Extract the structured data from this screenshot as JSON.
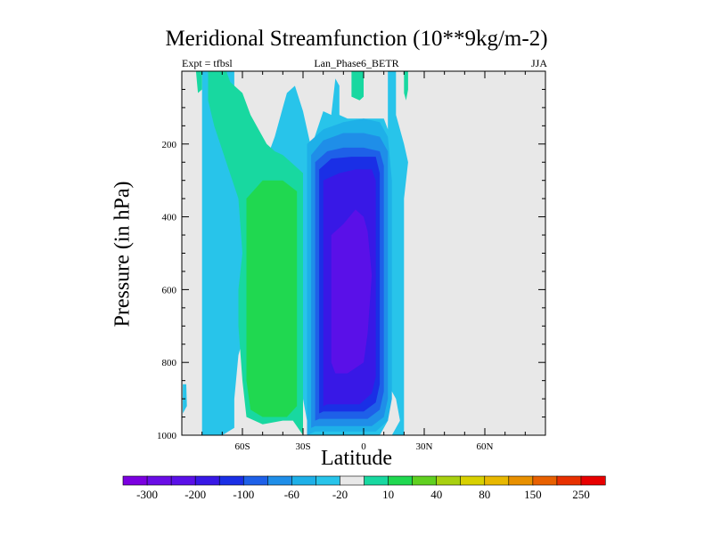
{
  "chart_data": {
    "type": "contour",
    "title": "Meridional Streamfunction (10**9kg/m-2)",
    "subtitle_left": "Expt = tfbsl",
    "subtitle_center": "Lan_Phase6_BETR",
    "subtitle_right": "JJA",
    "xlabel": "Latitude",
    "ylabel": "Pressure (in hPa)",
    "xlim": [
      -90,
      90
    ],
    "ylim": [
      0,
      1000
    ],
    "x_ticks": [
      {
        "value": -60,
        "label": "60S"
      },
      {
        "value": -30,
        "label": "30S"
      },
      {
        "value": 0,
        "label": "0"
      },
      {
        "value": 30,
        "label": "30N"
      },
      {
        "value": 60,
        "label": "60N"
      }
    ],
    "y_ticks": [
      {
        "value": 200,
        "label": "200"
      },
      {
        "value": 400,
        "label": "400"
      },
      {
        "value": 600,
        "label": "600"
      },
      {
        "value": 800,
        "label": "800"
      },
      {
        "value": 1000,
        "label": "1000"
      }
    ],
    "colorbar": {
      "colors": [
        "#7b00e0",
        "#6a0de6",
        "#5a10e8",
        "#3818e6",
        "#1a2fe6",
        "#1e60e8",
        "#1f8ee8",
        "#1eb0e8",
        "#28c4ea",
        "#e8e8e8",
        "#18d8a0",
        "#20d850",
        "#60d020",
        "#a8d010",
        "#d8d000",
        "#e8b800",
        "#e89000",
        "#e86000",
        "#e83000",
        "#e80000"
      ],
      "labels": [
        "-300",
        "-200",
        "-100",
        "-60",
        "-20",
        "10",
        "40",
        "80",
        "150",
        "250"
      ]
    },
    "regions": [
      {
        "name": "left-edge-cyan-sliver",
        "level": 10,
        "color": "#28c4ea",
        "pts": [
          [
            -89.5,
            860
          ],
          [
            -87.8,
            860
          ],
          [
            -87.5,
            920
          ],
          [
            -89.5,
            940
          ]
        ]
      },
      {
        "name": "south-cell-outer",
        "level": 10,
        "color": "#28c4ea",
        "pts": [
          [
            -80,
            1000
          ],
          [
            -80,
            0
          ],
          [
            -64,
            0
          ],
          [
            -64,
            40
          ],
          [
            -60,
            100
          ],
          [
            -54,
            180
          ],
          [
            -48,
            240
          ],
          [
            -44,
            180
          ],
          [
            -40,
            100
          ],
          [
            -38,
            60
          ],
          [
            -34,
            40
          ],
          [
            -30,
            110
          ],
          [
            -26,
            210
          ],
          [
            -20,
            110
          ],
          [
            -16,
            120
          ],
          [
            -14,
            20
          ],
          [
            -12,
            40
          ],
          [
            -12,
            120
          ],
          [
            -8,
            130
          ],
          [
            10,
            130
          ],
          [
            12,
            160
          ],
          [
            12,
            0
          ],
          [
            16,
            0
          ],
          [
            16,
            120
          ],
          [
            20,
            200
          ],
          [
            22,
            250
          ],
          [
            20,
            350
          ],
          [
            20,
            600
          ],
          [
            20,
            1000
          ],
          [
            14,
            1000
          ],
          [
            18,
            960
          ],
          [
            16,
            900
          ],
          [
            12,
            860
          ],
          [
            12,
            960
          ],
          [
            8,
            1000
          ],
          [
            -28,
            1000
          ],
          [
            -28,
            960
          ],
          [
            -30,
            900
          ],
          [
            -34,
            800
          ],
          [
            -36,
            700
          ],
          [
            -58,
            700
          ],
          [
            -62,
            780
          ],
          [
            -64,
            900
          ],
          [
            -64,
            980
          ],
          [
            -70,
            1000
          ]
        ]
      },
      {
        "name": "south-cell-green-10",
        "level": 40,
        "color": "#18d8a0",
        "pts": [
          [
            -77,
            0
          ],
          [
            -68,
            0
          ],
          [
            -66,
            30
          ],
          [
            -60,
            60
          ],
          [
            -56,
            120
          ],
          [
            -52,
            160
          ],
          [
            -48,
            200
          ],
          [
            -44,
            220
          ],
          [
            -40,
            230
          ],
          [
            -36,
            250
          ],
          [
            -30,
            280
          ],
          [
            -30,
            1000
          ],
          [
            -35,
            960
          ],
          [
            -40,
            960
          ],
          [
            -50,
            970
          ],
          [
            -58,
            950
          ],
          [
            -60,
            850
          ],
          [
            -62,
            700
          ],
          [
            -62,
            600
          ],
          [
            -60,
            500
          ],
          [
            -62,
            350
          ],
          [
            -68,
            250
          ],
          [
            -74,
            150
          ],
          [
            -77,
            80
          ]
        ]
      },
      {
        "name": "south-cell-green-40",
        "level": 80,
        "color": "#20d850",
        "pts": [
          [
            -58,
            350
          ],
          [
            -50,
            300
          ],
          [
            -40,
            300
          ],
          [
            -33,
            330
          ],
          [
            -33,
            920
          ],
          [
            -38,
            950
          ],
          [
            -50,
            950
          ],
          [
            -56,
            930
          ],
          [
            -58,
            850
          ]
        ]
      },
      {
        "name": "top-green-blob-left",
        "level": 40,
        "color": "#18d8a0",
        "pts": [
          [
            -83,
            0
          ],
          [
            -80,
            0
          ],
          [
            -80,
            50
          ],
          [
            -82,
            60
          ]
        ]
      },
      {
        "name": "top-green-blob-mid",
        "level": 40,
        "color": "#18d8a0",
        "pts": [
          [
            -6,
            0
          ],
          [
            0,
            0
          ],
          [
            0,
            70
          ],
          [
            -2,
            80
          ],
          [
            -6,
            70
          ]
        ]
      },
      {
        "name": "north-edge-green",
        "level": 40,
        "color": "#18d8a0",
        "pts": [
          [
            20,
            0
          ],
          [
            22,
            0
          ],
          [
            22,
            50
          ],
          [
            21,
            80
          ],
          [
            20,
            60
          ]
        ]
      },
      {
        "name": "hadley-1",
        "level": -20,
        "color": "#1eb0e8",
        "pts": [
          [
            -28,
            1000
          ],
          [
            -28,
            200
          ],
          [
            -20,
            160
          ],
          [
            -10,
            140
          ],
          [
            0,
            130
          ],
          [
            8,
            140
          ],
          [
            12,
            180
          ],
          [
            14,
            300
          ],
          [
            14,
            900
          ],
          [
            12,
            960
          ],
          [
            6,
            990
          ],
          [
            -16,
            990
          ],
          [
            -24,
            990
          ]
        ]
      },
      {
        "name": "hadley-2",
        "level": -60,
        "color": "#1f8ee8",
        "pts": [
          [
            -26,
            980
          ],
          [
            -26,
            230
          ],
          [
            -20,
            190
          ],
          [
            -10,
            170
          ],
          [
            0,
            170
          ],
          [
            8,
            180
          ],
          [
            12,
            220
          ],
          [
            12,
            900
          ],
          [
            10,
            950
          ],
          [
            4,
            975
          ],
          [
            -16,
            975
          ],
          [
            -24,
            975
          ]
        ]
      },
      {
        "name": "hadley-3",
        "level": -100,
        "color": "#1e60e8",
        "pts": [
          [
            -24,
            960
          ],
          [
            -24,
            250
          ],
          [
            -18,
            220
          ],
          [
            -10,
            210
          ],
          [
            0,
            210
          ],
          [
            8,
            220
          ],
          [
            10,
            260
          ],
          [
            10,
            880
          ],
          [
            8,
            930
          ],
          [
            2,
            955
          ],
          [
            -14,
            955
          ],
          [
            -22,
            955
          ]
        ]
      },
      {
        "name": "hadley-4",
        "level": -200,
        "color": "#1a2fe6",
        "pts": [
          [
            -22,
            940
          ],
          [
            -22,
            270
          ],
          [
            -16,
            240
          ],
          [
            -6,
            235
          ],
          [
            6,
            235
          ],
          [
            8,
            280
          ],
          [
            8,
            860
          ],
          [
            6,
            910
          ],
          [
            0,
            935
          ],
          [
            -14,
            935
          ],
          [
            -20,
            935
          ]
        ]
      },
      {
        "name": "hadley-5",
        "level": -250,
        "color": "#3818e6",
        "pts": [
          [
            -20,
            920
          ],
          [
            -20,
            300
          ],
          [
            -12,
            280
          ],
          [
            -4,
            270
          ],
          [
            4,
            270
          ],
          [
            6,
            300
          ],
          [
            6,
            840
          ],
          [
            4,
            885
          ],
          [
            -2,
            915
          ],
          [
            -14,
            915
          ],
          [
            -18,
            915
          ]
        ]
      },
      {
        "name": "hadley-core",
        "level": -300,
        "color": "#5a10e8",
        "pts": [
          [
            -16,
            800
          ],
          [
            -16,
            450
          ],
          [
            -10,
            420
          ],
          [
            -4,
            380
          ],
          [
            0,
            400
          ],
          [
            2,
            440
          ],
          [
            4,
            560
          ],
          [
            2,
            720
          ],
          [
            0,
            800
          ],
          [
            -8,
            830
          ],
          [
            -14,
            830
          ]
        ]
      }
    ]
  }
}
